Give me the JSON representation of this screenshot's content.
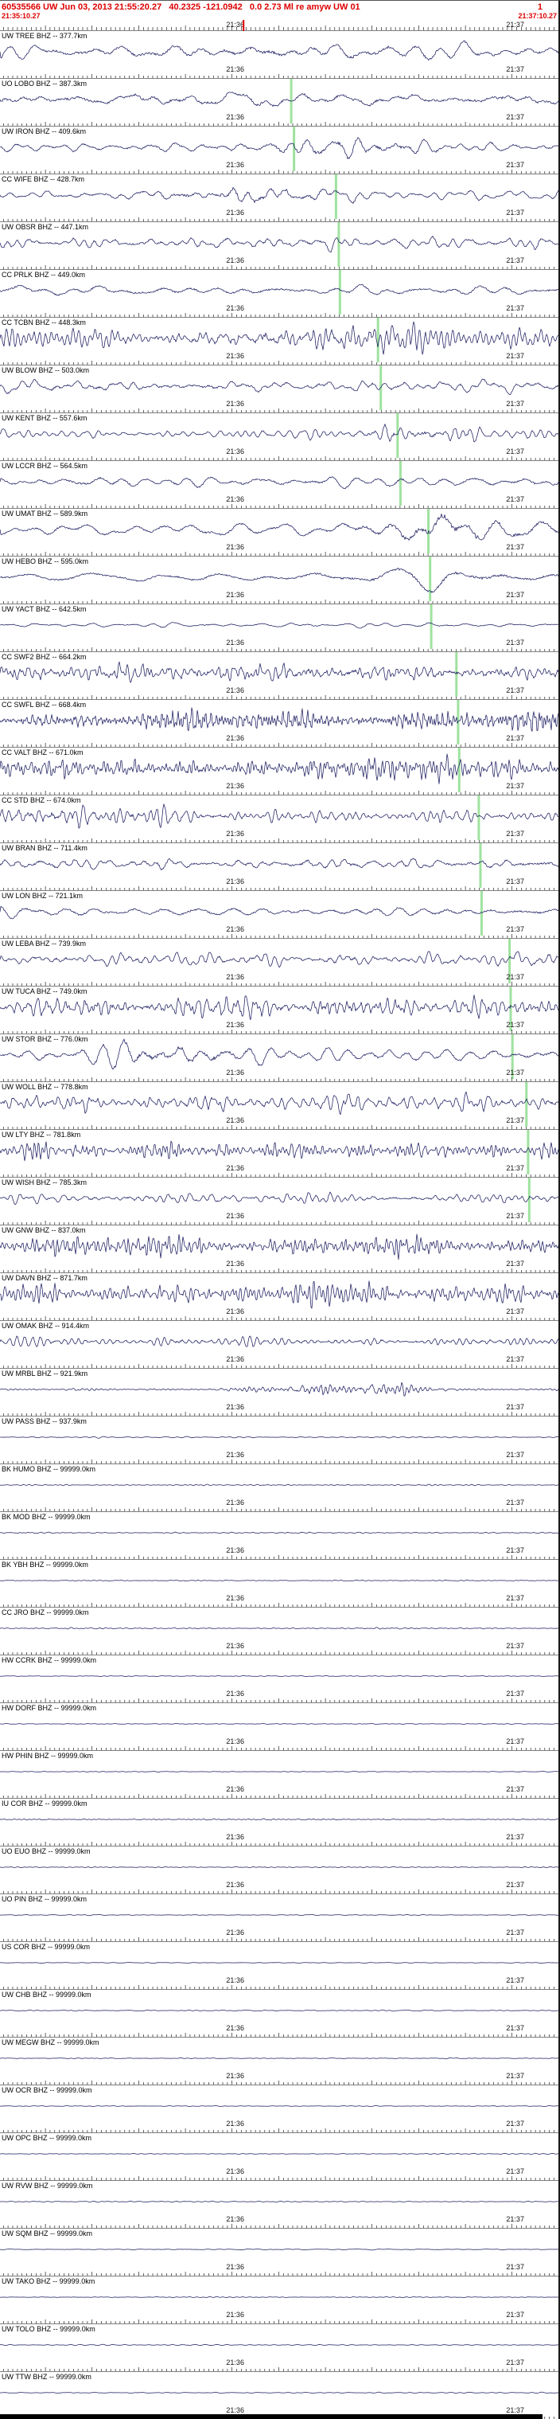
{
  "header": {
    "summary": "60535566 UW Jun 03, 2013 21:55:20.27   40.2325 -121.0942   0.0 2.73 Ml re amyw UW 01",
    "flag": "1",
    "window_start": "21:35:10.27",
    "window_end": "21:37:10.27"
  },
  "axis": {
    "tick_labels": [
      "21:36",
      "21:37"
    ],
    "label_positions": [
      0.4144,
      0.9144
    ],
    "seconds_total": 120,
    "first_tick_offset": 0.73,
    "cursor_position": 0.435
  },
  "colors": {
    "header_text": "#dd0000",
    "trace": "#1c1c60",
    "pick_marker": "#9fe29f",
    "cursor": "#dd0000",
    "label_text": "#000000",
    "tick": "#000000"
  },
  "channels": [
    {
      "label": "UW TREE BHZ -- 377.7km",
      "amp": 9,
      "f": 22,
      "seed": 101,
      "burst": {
        "x": 0.5,
        "w": 0.2,
        "g": 0.5
      },
      "pick": null
    },
    {
      "label": "UO LOBO BHZ -- 387.3km",
      "amp": 11,
      "f": 16,
      "seed": 102,
      "burst": null,
      "pick": 0.52
    },
    {
      "label": "UW IRON BHZ -- 409.6km",
      "amp": 7,
      "f": 28,
      "seed": 103,
      "burst": {
        "x": 0.62,
        "w": 0.1,
        "g": 1.2
      },
      "pick": 0.525
    },
    {
      "label": "CC WIFE BHZ -- 428.7km",
      "amp": 6,
      "f": 26,
      "seed": 104,
      "burst": {
        "x": 0.45,
        "w": 0.12,
        "g": 1.4
      },
      "pick": 0.6
    },
    {
      "label": "UW OBSR BHZ -- 447.1km",
      "amp": 8,
      "f": 34,
      "seed": 105,
      "burst": null,
      "pick": 0.605
    },
    {
      "label": "CC PRLK BHZ -- 449.0km",
      "amp": 8,
      "f": 14,
      "seed": 106,
      "burst": null,
      "pick": 0.607
    },
    {
      "label": "CC TCBN BHZ -- 448.3km",
      "amp": 11,
      "f": 55,
      "seed": 107,
      "burst": {
        "x": 0.55,
        "w": 0.15,
        "g": 0.9
      },
      "pick": 0.675
    },
    {
      "label": "UW BLOW BHZ -- 503.0km",
      "amp": 8,
      "f": 28,
      "seed": 108,
      "burst": null,
      "pick": 0.68
    },
    {
      "label": "UW KENT BHZ -- 557.6km",
      "amp": 6,
      "f": 42,
      "seed": 109,
      "burst": {
        "x": 0.75,
        "w": 0.08,
        "g": 1.4
      },
      "pick": 0.71
    },
    {
      "label": "UW LCCR BHZ -- 564.5km",
      "amp": 8,
      "f": 15,
      "seed": 110,
      "burst": null,
      "pick": 0.715
    },
    {
      "label": "UW UMAT BHZ -- 589.9km",
      "amp": 8,
      "f": 12,
      "seed": 111,
      "burst": {
        "x": 0.8,
        "w": 0.09,
        "g": 1.8
      },
      "pick": 0.765
    },
    {
      "label": "UW HEBO BHZ -- 595.0km",
      "amp": 7,
      "f": 13,
      "seed": 112,
      "burst": {
        "x": 0.8,
        "w": 0.12,
        "g": 0.8
      },
      "pick": 0.768
    },
    {
      "label": "UW YACT BHZ -- 642.5km",
      "amp": 3.5,
      "f": 22,
      "seed": 113,
      "burst": null,
      "pick": 0.77
    },
    {
      "label": "CC SWF2 BHZ -- 664.2km",
      "amp": 10,
      "f": 75,
      "seed": 114,
      "burst": {
        "x": 0.6,
        "w": 0.35,
        "g": 0.5
      },
      "pick": 0.815
    },
    {
      "label": "CC SWFL BHZ -- 668.4km",
      "amp": 12,
      "f": 110,
      "seed": 115,
      "burst": {
        "x": 0.7,
        "w": 0.3,
        "g": 0.6
      },
      "pick": 0.818
    },
    {
      "label": "CC VALT BHZ -- 671.0km",
      "amp": 11,
      "f": 95,
      "seed": 116,
      "burst": {
        "x": 0.65,
        "w": 0.3,
        "g": 0.5
      },
      "pick": 0.82
    },
    {
      "label": "CC STD BHZ -- 674.0km",
      "amp": 9,
      "f": 65,
      "seed": 117,
      "burst": {
        "x": 0.15,
        "w": 0.12,
        "g": 1.1
      },
      "pick": 0.855
    },
    {
      "label": "UW BRAN BHZ -- 711.4km",
      "amp": 9,
      "f": 26,
      "seed": 118,
      "burst": null,
      "pick": 0.858
    },
    {
      "label": "UW LON BHZ -- 721.1km",
      "amp": 8,
      "f": 14,
      "seed": 119,
      "burst": null,
      "pick": 0.86
    },
    {
      "label": "UW LEBA BHZ -- 739.9km",
      "amp": 9,
      "f": 38,
      "seed": 120,
      "burst": null,
      "pick": 0.91
    },
    {
      "label": "UW TUCA BHZ -- 749.0km",
      "amp": 11,
      "f": 85,
      "seed": 121,
      "burst": {
        "x": 0.5,
        "w": 0.3,
        "g": 0.4
      },
      "pick": 0.912
    },
    {
      "label": "UW STOR BHZ -- 776.0km",
      "amp": 9,
      "f": 28,
      "seed": 122,
      "burst": {
        "x": 0.3,
        "w": 0.1,
        "g": 1.2
      },
      "pick": 0.915
    },
    {
      "label": "UW WOLL BHZ -- 778.8km",
      "amp": 11,
      "f": 65,
      "seed": 123,
      "burst": null,
      "pick": 0.94
    },
    {
      "label": "UW LTY BHZ -- 781.8km",
      "amp": 11,
      "f": 80,
      "seed": 124,
      "burst": null,
      "pick": 0.943
    },
    {
      "label": "UW WISH BHZ -- 785.3km",
      "amp": 7,
      "f": 48,
      "seed": 125,
      "burst": null,
      "pick": 0.945
    },
    {
      "label": "UW GNW BHZ -- 837.0km",
      "amp": 11,
      "f": 90,
      "seed": 126,
      "burst": null,
      "pick": null
    },
    {
      "label": "UW DAVN BHZ -- 871.7km",
      "amp": 12,
      "f": 95,
      "seed": 127,
      "burst": {
        "x": 0.55,
        "w": 0.3,
        "g": 0.4
      },
      "pick": null
    },
    {
      "label": "UW OMAK BHZ -- 914.4km",
      "amp": 7,
      "f": 55,
      "seed": 128,
      "burst": null,
      "pick": null
    },
    {
      "label": "UW MRBL BHZ -- 921.9km",
      "amp": 1.5,
      "f": 80,
      "seed": 129,
      "burst": {
        "x": 0.62,
        "w": 0.09,
        "g": 7
      },
      "pick": null
    },
    {
      "label": "UW PASS BHZ -- 937.9km",
      "amp": 1.2,
      "f": 40,
      "seed": 130,
      "burst": null,
      "pick": null
    },
    {
      "label": "BK HUMO BHZ -- 99999.0km",
      "amp": 0.7,
      "f": 60,
      "seed": 131,
      "burst": null,
      "pick": null
    },
    {
      "label": "BK MOD BHZ -- 99999.0km",
      "amp": 1.0,
      "f": 80,
      "seed": 132,
      "burst": null,
      "pick": null
    },
    {
      "label": "BK YBH BHZ -- 99999.0km",
      "amp": 0.7,
      "f": 60,
      "seed": 133,
      "burst": null,
      "pick": null
    },
    {
      "label": "CC JRO BHZ -- 99999.0km",
      "amp": 0.8,
      "f": 60,
      "seed": 134,
      "burst": null,
      "pick": null
    },
    {
      "label": "HW CCRK BHZ -- 99999.0km",
      "amp": 0.6,
      "f": 50,
      "seed": 135,
      "burst": null,
      "pick": null
    },
    {
      "label": "HW DORF BHZ -- 99999.0km",
      "amp": 0.6,
      "f": 50,
      "seed": 136,
      "burst": null,
      "pick": null
    },
    {
      "label": "HW PHIN BHZ -- 99999.0km",
      "amp": 0.6,
      "f": 50,
      "seed": 137,
      "burst": null,
      "pick": null
    },
    {
      "label": "IU COR BHZ -- 99999.0km",
      "amp": 0.8,
      "f": 60,
      "seed": 138,
      "burst": null,
      "pick": null
    },
    {
      "label": "UO EUO BHZ -- 99999.0km",
      "amp": 0.6,
      "f": 50,
      "seed": 139,
      "burst": null,
      "pick": null
    },
    {
      "label": "UO PIN BHZ -- 99999.0km",
      "amp": 0.6,
      "f": 50,
      "seed": 140,
      "burst": null,
      "pick": null
    },
    {
      "label": "US COR BHZ -- 99999.0km",
      "amp": 0.6,
      "f": 50,
      "seed": 141,
      "burst": null,
      "pick": null
    },
    {
      "label": "UW CHB BHZ -- 99999.0km",
      "amp": 0.7,
      "f": 50,
      "seed": 142,
      "burst": null,
      "pick": null
    },
    {
      "label": "UW MEGW BHZ -- 99999.0km",
      "amp": 0.6,
      "f": 50,
      "seed": 143,
      "burst": null,
      "pick": null
    },
    {
      "label": "UW OCR BHZ -- 99999.0km",
      "amp": 0.6,
      "f": 50,
      "seed": 144,
      "burst": null,
      "pick": null
    },
    {
      "label": "UW OPC BHZ -- 99999.0km",
      "amp": 0.6,
      "f": 50,
      "seed": 145,
      "burst": null,
      "pick": null
    },
    {
      "label": "UW RVW BHZ -- 99999.0km",
      "amp": 0.6,
      "f": 50,
      "seed": 146,
      "burst": null,
      "pick": null
    },
    {
      "label": "UW SQM BHZ -- 99999.0km",
      "amp": 0.6,
      "f": 50,
      "seed": 147,
      "burst": null,
      "pick": null
    },
    {
      "label": "UW TAKO BHZ -- 99999.0km",
      "amp": 0.6,
      "f": 50,
      "seed": 148,
      "burst": null,
      "pick": null
    },
    {
      "label": "UW TOLO BHZ -- 99999.0km",
      "amp": 0.6,
      "f": 50,
      "seed": 149,
      "burst": null,
      "pick": null
    },
    {
      "label": "UW TTW BHZ -- 99999.0km",
      "amp": 0.6,
      "f": 50,
      "seed": 150,
      "burst": null,
      "pick": null
    }
  ]
}
